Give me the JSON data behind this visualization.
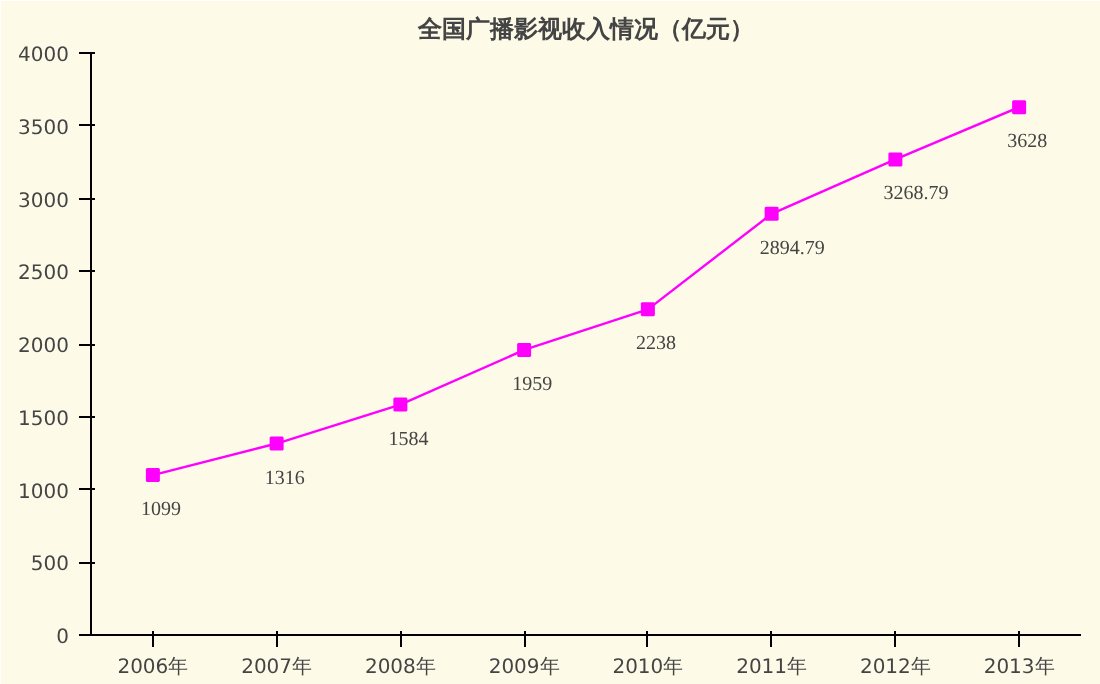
{
  "chart_data": {
    "type": "line",
    "title": "全国广播影视收入情况（亿元）",
    "categories": [
      "2006年",
      "2007年",
      "2008年",
      "2009年",
      "2010年",
      "2011年",
      "2012年",
      "2013年"
    ],
    "values": [
      1099,
      1316,
      1584,
      1959,
      2238,
      2894.79,
      3268.79,
      3628
    ],
    "color": "#ff00ff",
    "marker": "square",
    "line_style": "solid",
    "ylim": [
      0,
      4000
    ],
    "yticks": [
      0,
      500,
      1000,
      1500,
      2000,
      2500,
      3000,
      3500,
      4000
    ],
    "grid": false,
    "data_labels": true
  }
}
